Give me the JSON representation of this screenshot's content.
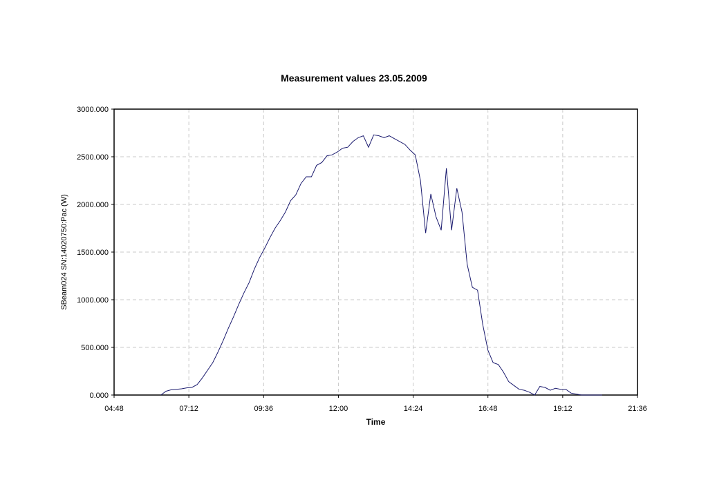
{
  "chart_data": {
    "type": "line",
    "title": "Measurement values 23.05.2009",
    "xlabel": "Time",
    "ylabel": "SBeam024 SN:14020750:Pac (W)",
    "x_tick_labels": [
      "04:48",
      "07:12",
      "09:36",
      "12:00",
      "14:24",
      "16:48",
      "19:12",
      "21:36"
    ],
    "y_tick_labels": [
      "0.000",
      "500.000",
      "1000.000",
      "1500.000",
      "2000.000",
      "2500.000",
      "3000.000"
    ],
    "xlim": [
      "04:48",
      "21:36"
    ],
    "ylim": [
      0,
      3000
    ],
    "grid": true,
    "colors": {
      "line": "#1a1a6e",
      "grid": "#c8c8c8",
      "frame": "#000000"
    },
    "series": [
      {
        "x": [
          "06:18",
          "06:28",
          "06:38",
          "06:48",
          "06:58",
          "07:08",
          "07:18",
          "07:28",
          "07:38",
          "07:48",
          "07:58",
          "08:08",
          "08:18",
          "08:28",
          "08:38",
          "08:48",
          "08:58",
          "09:08",
          "09:18",
          "09:28",
          "09:38",
          "09:48",
          "09:58",
          "10:08",
          "10:18",
          "10:28",
          "10:38",
          "10:48",
          "10:58",
          "11:08",
          "11:18",
          "11:28",
          "11:38",
          "11:48",
          "11:58",
          "12:08",
          "12:18",
          "12:28",
          "12:38",
          "12:48",
          "12:58",
          "13:08",
          "13:18",
          "13:28",
          "13:38",
          "13:48",
          "13:58",
          "14:08",
          "14:18",
          "14:28",
          "14:38",
          "14:48",
          "14:58",
          "15:08",
          "15:18",
          "15:28",
          "15:38",
          "15:48",
          "15:58",
          "16:08",
          "16:18",
          "16:28",
          "16:38",
          "16:48",
          "16:58",
          "17:08",
          "17:18",
          "17:28",
          "17:38",
          "17:48",
          "17:58",
          "18:08",
          "18:18",
          "18:28",
          "18:38",
          "18:48",
          "18:58",
          "19:08",
          "19:18",
          "19:28",
          "19:38",
          "19:48",
          "19:58",
          "20:08",
          "20:18",
          "20:28"
        ],
        "y": [
          0,
          40,
          55,
          60,
          65,
          75,
          80,
          110,
          180,
          260,
          340,
          450,
          570,
          700,
          820,
          950,
          1070,
          1180,
          1320,
          1440,
          1540,
          1650,
          1750,
          1830,
          1920,
          2040,
          2100,
          2220,
          2290,
          2290,
          2410,
          2440,
          2510,
          2520,
          2550,
          2590,
          2600,
          2660,
          2700,
          2720,
          2600,
          2730,
          2720,
          2700,
          2720,
          2690,
          2660,
          2630,
          2570,
          2520,
          2250,
          1700,
          2110,
          1870,
          1730,
          2380,
          1730,
          2170,
          1920,
          1370,
          1130,
          1100,
          740,
          470,
          340,
          320,
          240,
          140,
          100,
          60,
          50,
          30,
          0,
          90,
          80,
          50,
          70,
          60,
          60,
          20,
          10,
          0,
          0,
          0,
          0,
          0
        ]
      }
    ]
  }
}
